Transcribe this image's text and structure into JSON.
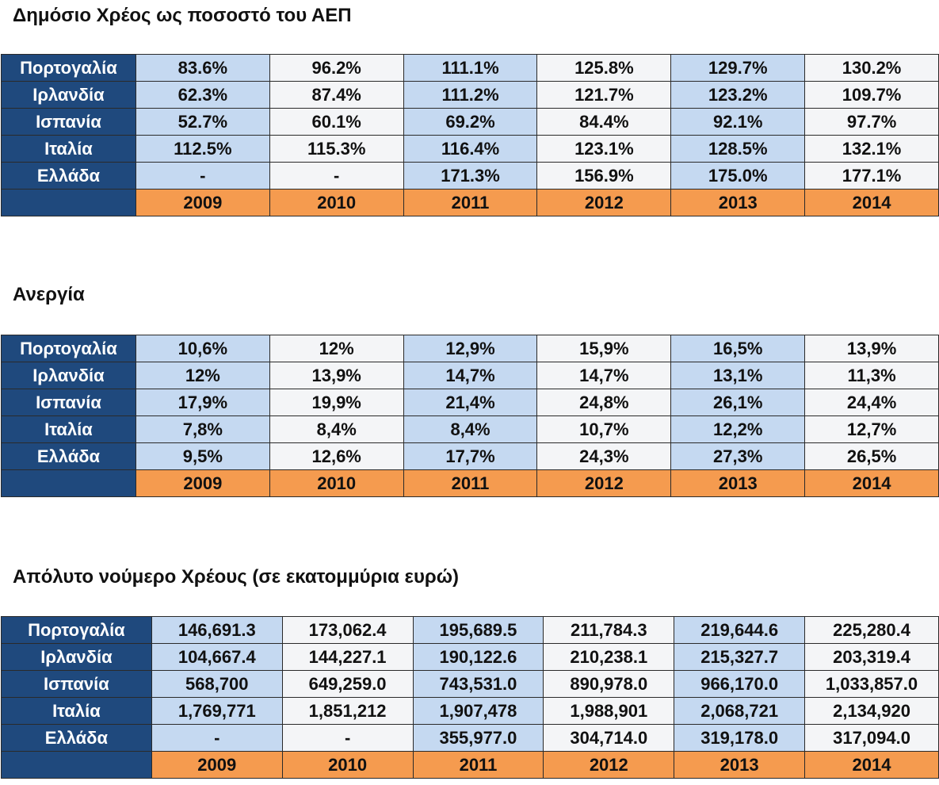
{
  "years": [
    "2009",
    "2010",
    "2011",
    "2012",
    "2013",
    "2014"
  ],
  "tables": [
    {
      "title": "Δημόσιο Χρέος ως ποσοστό του ΑΕΠ",
      "rows": [
        {
          "country": "Πορτογαλία",
          "values": [
            "83.6%",
            "96.2%",
            "111.1%",
            "125.8%",
            "129.7%",
            "130.2%"
          ]
        },
        {
          "country": "Ιρλανδία",
          "values": [
            "62.3%",
            "87.4%",
            "111.2%",
            "121.7%",
            "123.2%",
            "109.7%"
          ]
        },
        {
          "country": "Ισπανία",
          "values": [
            "52.7%",
            "60.1%",
            "69.2%",
            "84.4%",
            "92.1%",
            "97.7%"
          ]
        },
        {
          "country": "Ιταλία",
          "values": [
            "112.5%",
            "115.3%",
            "116.4%",
            "123.1%",
            "128.5%",
            "132.1%"
          ]
        },
        {
          "country": "Ελλάδα",
          "values": [
            "-",
            "-",
            "171.3%",
            "156.9%",
            "175.0%",
            "177.1%"
          ]
        }
      ]
    },
    {
      "title": "Ανεργία",
      "rows": [
        {
          "country": "Πορτογαλία",
          "values": [
            "10,6%",
            "12%",
            "12,9%",
            "15,9%",
            "16,5%",
            "13,9%"
          ]
        },
        {
          "country": "Ιρλανδία",
          "values": [
            "12%",
            "13,9%",
            "14,7%",
            "14,7%",
            "13,1%",
            "11,3%"
          ]
        },
        {
          "country": "Ισπανία",
          "values": [
            "17,9%",
            "19,9%",
            "21,4%",
            "24,8%",
            "26,1%",
            "24,4%"
          ]
        },
        {
          "country": "Ιταλία",
          "values": [
            "7,8%",
            "8,4%",
            "8,4%",
            "10,7%",
            "12,2%",
            "12,7%"
          ]
        },
        {
          "country": "Ελλάδα",
          "values": [
            "9,5%",
            "12,6%",
            "17,7%",
            "24,3%",
            "27,3%",
            "26,5%"
          ]
        }
      ]
    },
    {
      "title": "Απόλυτο νούμερο Χρέους (σε εκατομμύρια ευρώ)",
      "rows": [
        {
          "country": "Πορτογαλία",
          "values": [
            "146,691.3",
            "173,062.4",
            "195,689.5",
            "211,784.3",
            "219,644.6",
            "225,280.4"
          ]
        },
        {
          "country": "Ιρλανδία",
          "values": [
            "104,667.4",
            "144,227.1",
            "190,122.6",
            "210,238.1",
            "215,327.7",
            "203,319.4"
          ]
        },
        {
          "country": "Ισπανία",
          "values": [
            "568,700",
            "649,259.0",
            "743,531.0",
            "890,978.0",
            "966,170.0",
            "1,033,857.0"
          ]
        },
        {
          "country": "Ιταλία",
          "values": [
            "1,769,771",
            "1,851,212",
            "1,907,478",
            "1,988,901",
            "2,068,721",
            "2,134,920"
          ]
        },
        {
          "country": "Ελλάδα",
          "values": [
            "-",
            "-",
            "355,977.0",
            "304,714.0",
            "319,178.0",
            "317,094.0"
          ]
        }
      ]
    }
  ]
}
